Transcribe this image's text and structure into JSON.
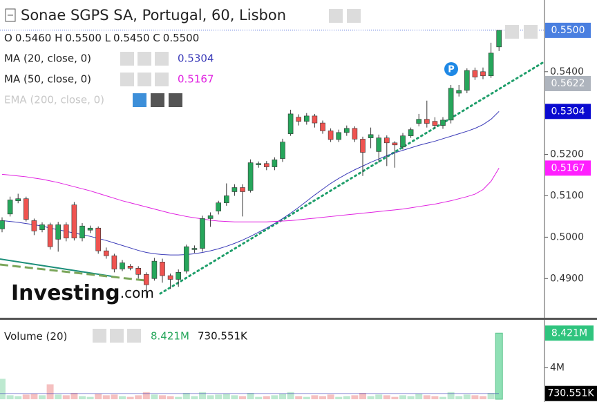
{
  "header": {
    "title": "Sonae SGPS SA, Portugal, 60, Lisbon",
    "ohlc": [
      {
        "key": "O",
        "value": "0.5460"
      },
      {
        "key": "H",
        "value": "0.5500"
      },
      {
        "key": "L",
        "value": "0.5450"
      },
      {
        "key": "C",
        "value": "0.5500"
      }
    ],
    "logo": "Investing",
    "logo_suffix": ".com"
  },
  "chart_data": [
    {
      "type": "candlestick",
      "categories": [
        null,
        null,
        null,
        null,
        null,
        null,
        null,
        null,
        null,
        null,
        null,
        null,
        null,
        null,
        null,
        null,
        null,
        null,
        null,
        null,
        null,
        null,
        null,
        null,
        null,
        null,
        null,
        null,
        null,
        null,
        null,
        null,
        null,
        null,
        null,
        null,
        null,
        null,
        null,
        null,
        null,
        null,
        null,
        null,
        null,
        null,
        null,
        null,
        null,
        null,
        null,
        null,
        null,
        null,
        null,
        null,
        null,
        null,
        null,
        null,
        null,
        null,
        null
      ],
      "open": [
        0.502,
        0.5056,
        0.5088,
        0.5093,
        0.504,
        0.5018,
        0.503,
        0.4995,
        0.503,
        0.5078,
        0.4998,
        0.5017,
        0.5022,
        0.4967,
        0.4955,
        0.4923,
        0.493,
        0.4925,
        0.491,
        0.49,
        0.494,
        0.4907,
        0.4898,
        0.4918,
        0.497,
        0.4973,
        0.5045,
        0.5063,
        0.5083,
        0.511,
        0.512,
        0.5113,
        0.5175,
        0.5178,
        0.517,
        0.519,
        0.525,
        0.529,
        0.528,
        0.5293,
        0.5276,
        0.5257,
        0.5236,
        0.5253,
        0.5263,
        0.5237,
        0.524,
        0.5207,
        0.524,
        0.5228,
        0.5218,
        0.5245,
        0.5275,
        0.5285,
        0.528,
        0.527,
        0.5283,
        0.5348,
        0.5355,
        0.5403,
        0.54,
        0.539,
        0.546
      ],
      "high": [
        0.5048,
        0.5098,
        0.5105,
        0.5098,
        0.5045,
        0.5036,
        0.5035,
        0.5037,
        0.5036,
        0.5085,
        0.5034,
        0.5028,
        0.5026,
        0.4975,
        0.496,
        0.4945,
        0.4935,
        0.493,
        0.4915,
        0.495,
        0.4948,
        0.4912,
        0.4922,
        0.4982,
        0.498,
        0.5052,
        0.506,
        0.5088,
        0.513,
        0.5128,
        0.5128,
        0.5188,
        0.5183,
        0.5184,
        0.5193,
        0.5238,
        0.5308,
        0.5297,
        0.53,
        0.5298,
        0.5282,
        0.5263,
        0.526,
        0.527,
        0.5268,
        0.5243,
        0.5265,
        0.5248,
        0.5246,
        0.5232,
        0.5252,
        0.5265,
        0.5298,
        0.533,
        0.529,
        0.529,
        0.5368,
        0.5368,
        0.5408,
        0.541,
        0.541,
        0.547,
        0.55
      ],
      "low": [
        0.5012,
        0.505,
        0.5082,
        0.5038,
        0.5005,
        0.5012,
        0.497,
        0.4965,
        0.499,
        0.4992,
        0.499,
        0.501,
        0.496,
        0.4948,
        0.4915,
        0.4918,
        0.492,
        0.49,
        0.4852,
        0.4895,
        0.489,
        0.4875,
        0.488,
        0.4912,
        0.4962,
        0.4965,
        0.5025,
        0.5055,
        0.5076,
        0.51,
        0.505,
        0.5108,
        0.5168,
        0.5162,
        0.5162,
        0.5182,
        0.5245,
        0.527,
        0.5272,
        0.5265,
        0.525,
        0.523,
        0.523,
        0.5245,
        0.523,
        0.5148,
        0.5215,
        0.518,
        0.5172,
        0.5168,
        0.5212,
        0.524,
        0.5268,
        0.5265,
        0.5262,
        0.5262,
        0.5275,
        0.534,
        0.5348,
        0.538,
        0.5382,
        0.5385,
        0.545
      ],
      "close": [
        0.504,
        0.509,
        0.5093,
        0.5043,
        0.5015,
        0.503,
        0.4977,
        0.503,
        0.4998,
        0.4998,
        0.5027,
        0.5022,
        0.4967,
        0.4955,
        0.4923,
        0.4938,
        0.4925,
        0.491,
        0.4885,
        0.4942,
        0.4907,
        0.4898,
        0.4915,
        0.4977,
        0.4973,
        0.5045,
        0.5052,
        0.5083,
        0.51,
        0.512,
        0.511,
        0.518,
        0.5178,
        0.517,
        0.5187,
        0.523,
        0.5298,
        0.528,
        0.5293,
        0.5276,
        0.5257,
        0.5236,
        0.5253,
        0.5263,
        0.5237,
        0.5205,
        0.5248,
        0.524,
        0.5228,
        0.5223,
        0.5245,
        0.526,
        0.5285,
        0.5275,
        0.527,
        0.5283,
        0.536,
        0.5355,
        0.5403,
        0.5387,
        0.539,
        0.5445,
        0.55
      ],
      "up_color": "#26a65b",
      "down_color": "#ef5350",
      "last_tag": {
        "value": 0.55,
        "label": "0.5500"
      },
      "series": [
        {
          "name": "MA (20, close, 0)",
          "color": "#3a3ab8",
          "tag": "0.5304",
          "values": [
            0.504,
            0.5038,
            0.5036,
            0.5033,
            0.503,
            0.5027,
            0.5022,
            0.5018,
            0.5014,
            0.501,
            0.5006,
            0.5002,
            0.4997,
            0.4992,
            0.4986,
            0.498,
            0.4974,
            0.4968,
            0.4963,
            0.496,
            0.4958,
            0.4957,
            0.4957,
            0.4958,
            0.496,
            0.4963,
            0.4967,
            0.4972,
            0.4978,
            0.4985,
            0.4993,
            0.5002,
            0.5012,
            0.5022,
            0.5033,
            0.5045,
            0.5058,
            0.5072,
            0.5087,
            0.5102,
            0.5116,
            0.513,
            0.5142,
            0.5153,
            0.5163,
            0.5172,
            0.5181,
            0.5189,
            0.5197,
            0.5204,
            0.521,
            0.5216,
            0.5222,
            0.5227,
            0.5232,
            0.5238,
            0.5244,
            0.525,
            0.5256,
            0.5263,
            0.5272,
            0.5285,
            0.5304
          ]
        },
        {
          "name": "MA (50, close, 0)",
          "color": "#e020e0",
          "tag": "0.5167",
          "values": [
            0.5152,
            0.515,
            0.5148,
            0.5146,
            0.5143,
            0.514,
            0.5136,
            0.5132,
            0.5127,
            0.5122,
            0.5117,
            0.5112,
            0.5106,
            0.51,
            0.5094,
            0.5088,
            0.5083,
            0.5078,
            0.5073,
            0.5068,
            0.5063,
            0.5058,
            0.5054,
            0.505,
            0.5047,
            0.5044,
            0.5041,
            0.5039,
            0.5038,
            0.5037,
            0.5037,
            0.5037,
            0.5037,
            0.5037,
            0.5038,
            0.5039,
            0.504,
            0.5042,
            0.5044,
            0.5046,
            0.5048,
            0.505,
            0.5052,
            0.5054,
            0.5056,
            0.5058,
            0.506,
            0.5062,
            0.5064,
            0.5066,
            0.5068,
            0.5071,
            0.5074,
            0.5077,
            0.508,
            0.5084,
            0.5088,
            0.5093,
            0.5098,
            0.5104,
            0.5115,
            0.5135,
            0.5167
          ]
        },
        {
          "name": "EMA (200, close, 0)",
          "color": "#cfcfcf",
          "tag": "0.5622"
        }
      ],
      "annotations": [
        "P"
      ],
      "ylim": [
        0.48053,
        0.55733
      ],
      "yticks": [
        {
          "value": 0.49,
          "label": "0.4900"
        },
        {
          "value": 0.5,
          "label": "0.5000"
        },
        {
          "value": 0.51,
          "label": "0.5100"
        },
        {
          "value": 0.52,
          "label": "0.5200"
        },
        {
          "value": 0.54,
          "label": "0.5400"
        }
      ]
    },
    {
      "type": "bar",
      "name": "Volume (20)",
      "values": [
        2600000,
        500000,
        400000,
        600000,
        700000,
        500000,
        1900000,
        600000,
        500000,
        800000,
        400000,
        300000,
        700000,
        500000,
        600000,
        400000,
        300000,
        500000,
        900000,
        600000,
        500000,
        400000,
        300000,
        800000,
        400000,
        900000,
        500000,
        600000,
        700000,
        500000,
        400000,
        800000,
        300000,
        400000,
        500000,
        700000,
        900000,
        400000,
        300000,
        500000,
        400000,
        600000,
        300000,
        400000,
        500000,
        800000,
        400000,
        600000,
        500000,
        300000,
        500000,
        400000,
        700000,
        500000,
        400000,
        300000,
        900000,
        400000,
        600000,
        500000,
        400000,
        800000,
        8421000
      ],
      "value_label": "8.421M",
      "ma": {
        "value": 730551,
        "label": "730.551K"
      },
      "ylim": [
        0,
        9940000
      ],
      "yticks": [
        {
          "value": 4000000,
          "label": "4M"
        }
      ]
    }
  ]
}
